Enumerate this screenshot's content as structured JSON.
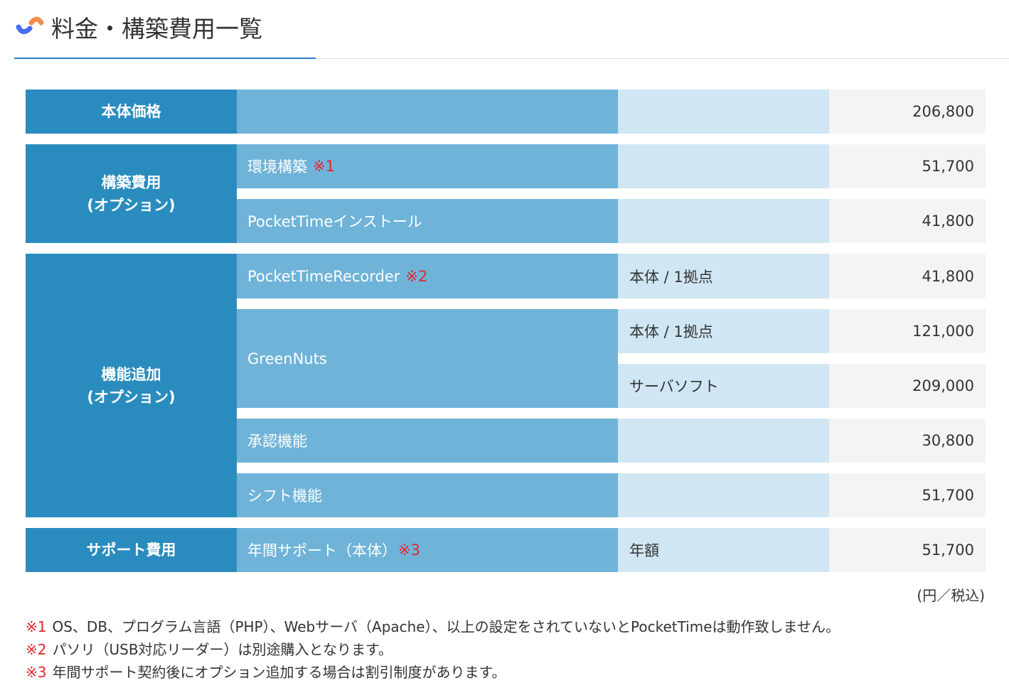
{
  "header": {
    "title": "料金・構築費用一覧"
  },
  "rows": {
    "base": {
      "head": "本体価格",
      "value": "206,800"
    },
    "build": {
      "head": [
        "構築費用",
        "(オプション)"
      ],
      "env": {
        "label": "環境構築",
        "note": "※1",
        "value": "51,700"
      },
      "install": {
        "label": "PocketTimeインストール",
        "value": "41,800"
      }
    },
    "func": {
      "head": [
        "機能追加",
        "(オプション)"
      ],
      "recorder": {
        "label": "PocketTimeRecorder",
        "note": "※2",
        "unit": "本体 / 1拠点",
        "value": "41,800"
      },
      "greennuts": {
        "label": "GreenNuts",
        "unit1": "本体 / 1拠点",
        "value1": "121,000",
        "unit2": "サーバソフト",
        "value2": "209,000"
      },
      "approval": {
        "label": "承認機能",
        "value": "30,800"
      },
      "shift": {
        "label": "シフト機能",
        "value": "51,700"
      }
    },
    "support": {
      "head": "サポート費用",
      "label": "年間サポート（本体）",
      "note": "※3",
      "unit": "年額",
      "value": "51,700"
    }
  },
  "unit_note": "(円／税込)",
  "notes": [
    {
      "mark": "※1",
      "text": "OS、DB、プログラム言語（PHP）、Webサーバ（Apache）、以上の設定をされていないとPocketTimeは動作致しません。"
    },
    {
      "mark": "※2",
      "text": "パソリ（USB対応リーダー）は別途購入となります。"
    },
    {
      "mark": "※3",
      "text": "年間サポート契約後にオプション追加する場合は割引制度があります。"
    }
  ]
}
